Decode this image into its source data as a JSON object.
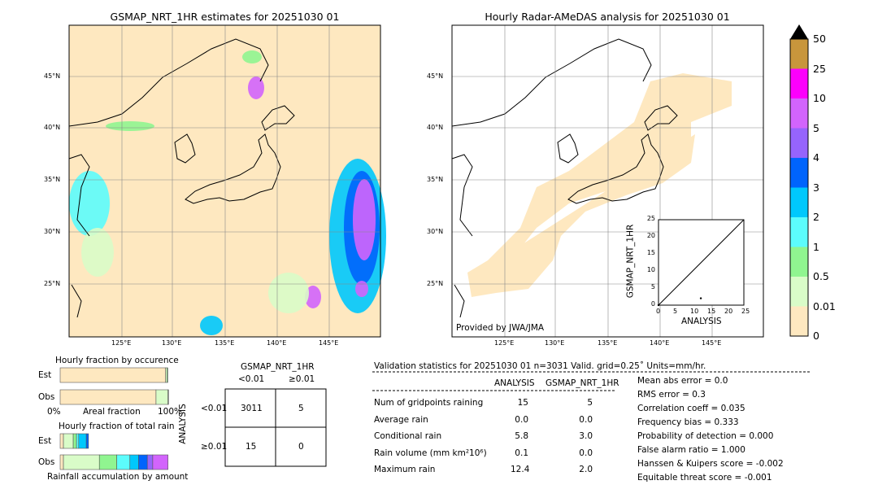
{
  "left_map": {
    "title": "GSMAP_NRT_1HR estimates for 20251030 01"
  },
  "right_map": {
    "title": "Hourly Radar-AMeDAS analysis for 20251030 01",
    "credit": "Provided by JWA/JMA"
  },
  "lon_ticks": [
    "125°E",
    "130°E",
    "135°E",
    "140°E",
    "145°E"
  ],
  "lat_ticks": [
    "45°N",
    "40°N",
    "35°N",
    "30°N",
    "25°N"
  ],
  "colorbar": {
    "levels": [
      "0",
      "0.01",
      "0.5",
      "1",
      "2",
      "3",
      "4",
      "5",
      "10",
      "25",
      "50"
    ],
    "colors": [
      "#fee8c0",
      "#d9fcc8",
      "#90f590",
      "#5cfcfc",
      "#00c8fc",
      "#0064fc",
      "#9664fc",
      "#d264fc",
      "#fc00fc",
      "#c8963c"
    ]
  },
  "chart_data": [
    {
      "type": "scatter",
      "title": "",
      "xlabel": "ANALYSIS",
      "ylabel": "GSMAP_NRT_1HR",
      "xlim": [
        0,
        25
      ],
      "ylim": [
        0,
        25
      ],
      "ticks": [
        "0",
        "5",
        "10",
        "15",
        "20",
        "25"
      ],
      "points": [
        [
          0,
          0
        ],
        [
          12.4,
          2.0
        ]
      ]
    },
    {
      "type": "bar",
      "title": "Hourly fraction by occurence",
      "xlabel": "Areal fraction",
      "xmin_label": "0%",
      "xmax_label": "100%",
      "rows": [
        {
          "name": "Est",
          "fractions": [
            0.968,
            0.012,
            0.008
          ]
        },
        {
          "name": "Obs",
          "fractions": [
            0.88,
            0.11,
            0.005
          ]
        }
      ]
    },
    {
      "type": "bar",
      "title": "Hourly fraction of total rain",
      "xlabel": "Rainfall accumulation by amount",
      "rows": [
        {
          "name": "Est",
          "fractions": [
            0.03,
            0.09,
            0.03,
            0.02,
            0.07,
            0.02
          ]
        },
        {
          "name": "Obs",
          "fractions": [
            0.03,
            0.33,
            0.16,
            0.12,
            0.08,
            0.08,
            0.05,
            0.14
          ]
        }
      ]
    },
    {
      "type": "table",
      "title": "GSMAP_NRT_1HR",
      "col_headers": [
        "<0.01",
        "≥0.01"
      ],
      "row_title": "ANALYSIS",
      "row_headers": [
        "<0.01",
        "≥0.01"
      ],
      "cells": [
        [
          "3011",
          "5"
        ],
        [
          "15",
          "0"
        ]
      ]
    }
  ],
  "stats": {
    "header": "Validation statistics for 20251030 01  n=3031 Valid. grid=0.25˚ Units=mm/hr.",
    "col1": "ANALYSIS",
    "col2": "GSMAP_NRT_1HR",
    "rows": [
      {
        "label": "Num of gridpoints raining",
        "a": "15",
        "g": "5"
      },
      {
        "label": "Average rain",
        "a": "0.0",
        "g": "0.0"
      },
      {
        "label": "Conditional rain",
        "a": "5.8",
        "g": "3.0"
      },
      {
        "label": "Rain volume (mm km²10⁶)",
        "a": "0.1",
        "g": "0.0"
      },
      {
        "label": "Maximum rain",
        "a": "12.4",
        "g": "2.0"
      }
    ],
    "scores": [
      "Mean abs error =    0.0",
      "RMS error =    0.3",
      "Correlation coeff =  0.035",
      "Frequency bias =  0.333",
      "Probability of detection =  0.000",
      "False alarm ratio =  1.000",
      "Hanssen & Kuipers score = -0.002",
      "Equitable threat score = -0.001"
    ]
  }
}
